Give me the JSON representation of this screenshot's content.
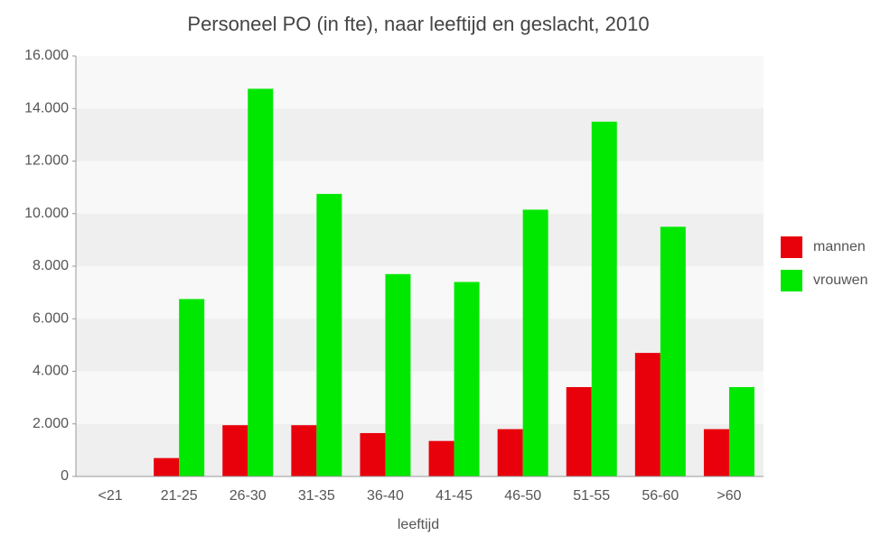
{
  "chart_data": {
    "type": "bar",
    "title": "Personeel PO (in fte), naar leeftijd en geslacht, 2010",
    "x_label": "leeftijd",
    "categories": [
      "<21",
      "21-25",
      "26-30",
      "31-35",
      "36-40",
      "41-45",
      "46-50",
      "51-55",
      "56-60",
      ">60"
    ],
    "series": [
      {
        "name": "mannen",
        "color": "#e8000b",
        "values": [
          0,
          700,
          1950,
          1950,
          1650,
          1350,
          1800,
          3400,
          4700,
          1800
        ]
      },
      {
        "name": "vrouwen",
        "color": "#00e800",
        "values": [
          0,
          6750,
          14750,
          10750,
          7700,
          7400,
          10150,
          13500,
          9500,
          3400
        ]
      }
    ],
    "ylim": [
      0,
      16000
    ],
    "yticks": [
      0,
      {
        "value": 2000,
        "label": "2.000"
      },
      {
        "value": 4000,
        "label": "4.000"
      },
      {
        "value": 6000,
        "label": "6.000"
      },
      {
        "value": 8000,
        "label": "8.000"
      },
      {
        "value": 10000,
        "label": "10.000"
      },
      {
        "value": 12000,
        "label": "12.000"
      },
      {
        "value": 14000,
        "label": "14.000"
      },
      {
        "value": 16000,
        "label": "16.000"
      }
    ],
    "grid": true,
    "legend": "right"
  }
}
